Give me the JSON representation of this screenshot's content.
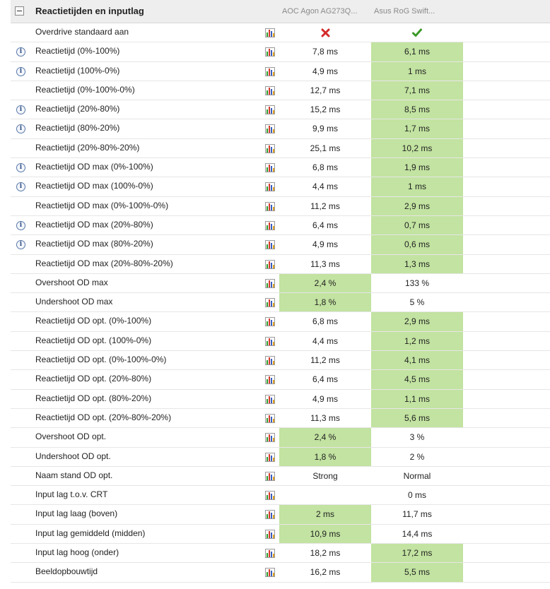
{
  "section": {
    "title": "Reactietijden en inputlag",
    "columns": [
      "AOC Agon AG273Q...",
      "Asus RoG Swift..."
    ]
  },
  "colors": {
    "best": "#c2e3a1",
    "cross": "#d42a2a",
    "check": "#3a9a28"
  },
  "rows": [
    {
      "label": "Overdrive standaard aan",
      "info": false,
      "a": "",
      "b": "",
      "a_icon": "cross-icon",
      "b_icon": "check-icon",
      "best": ""
    },
    {
      "label": "Reactietijd (0%-100%)",
      "info": true,
      "a": "7,8 ms",
      "b": "6,1 ms",
      "best": "b"
    },
    {
      "label": "Reactietijd (100%-0%)",
      "info": true,
      "a": "4,9 ms",
      "b": "1 ms",
      "best": "b"
    },
    {
      "label": "Reactietijd (0%-100%-0%)",
      "info": false,
      "a": "12,7 ms",
      "b": "7,1 ms",
      "best": "b"
    },
    {
      "label": "Reactietijd (20%-80%)",
      "info": true,
      "a": "15,2 ms",
      "b": "8,5 ms",
      "best": "b"
    },
    {
      "label": "Reactietijd (80%-20%)",
      "info": true,
      "a": "9,9 ms",
      "b": "1,7 ms",
      "best": "b"
    },
    {
      "label": "Reactietijd (20%-80%-20%)",
      "info": false,
      "a": "25,1 ms",
      "b": "10,2 ms",
      "best": "b"
    },
    {
      "label": "Reactietijd OD max (0%-100%)",
      "info": true,
      "a": "6,8 ms",
      "b": "1,9 ms",
      "best": "b"
    },
    {
      "label": "Reactietijd OD max (100%-0%)",
      "info": true,
      "a": "4,4 ms",
      "b": "1 ms",
      "best": "b"
    },
    {
      "label": "Reactietijd OD max (0%-100%-0%)",
      "info": false,
      "a": "11,2 ms",
      "b": "2,9 ms",
      "best": "b"
    },
    {
      "label": "Reactietijd OD max (20%-80%)",
      "info": true,
      "a": "6,4 ms",
      "b": "0,7 ms",
      "best": "b"
    },
    {
      "label": "Reactietijd OD max (80%-20%)",
      "info": true,
      "a": "4,9 ms",
      "b": "0,6 ms",
      "best": "b"
    },
    {
      "label": "Reactietijd OD max (20%-80%-20%)",
      "info": false,
      "a": "11,3 ms",
      "b": "1,3 ms",
      "best": "b"
    },
    {
      "label": "Overshoot OD max",
      "info": false,
      "a": "2,4 %",
      "b": "133 %",
      "best": "a"
    },
    {
      "label": "Undershoot OD max",
      "info": false,
      "a": "1,8 %",
      "b": "5 %",
      "best": "a"
    },
    {
      "label": "Reactietijd OD opt. (0%-100%)",
      "info": false,
      "a": "6,8 ms",
      "b": "2,9 ms",
      "best": "b"
    },
    {
      "label": "Reactietijd OD opt. (100%-0%)",
      "info": false,
      "a": "4,4 ms",
      "b": "1,2 ms",
      "best": "b"
    },
    {
      "label": "Reactietijd OD opt. (0%-100%-0%)",
      "info": false,
      "a": "11,2 ms",
      "b": "4,1 ms",
      "best": "b"
    },
    {
      "label": "Reactietijd OD opt. (20%-80%)",
      "info": false,
      "a": "6,4 ms",
      "b": "4,5 ms",
      "best": "b"
    },
    {
      "label": "Reactietijd OD opt. (80%-20%)",
      "info": false,
      "a": "4,9 ms",
      "b": "1,1 ms",
      "best": "b"
    },
    {
      "label": "Reactietijd OD opt. (20%-80%-20%)",
      "info": false,
      "a": "11,3 ms",
      "b": "5,6 ms",
      "best": "b"
    },
    {
      "label": "Overshoot OD opt.",
      "info": false,
      "a": "2,4 %",
      "b": "3 %",
      "best": "a"
    },
    {
      "label": "Undershoot OD opt.",
      "info": false,
      "a": "1,8 %",
      "b": "2 %",
      "best": "a"
    },
    {
      "label": "Naam stand OD opt.",
      "info": false,
      "a": "Strong",
      "b": "Normal",
      "best": ""
    },
    {
      "label": "Input lag t.o.v. CRT",
      "info": false,
      "a": "",
      "b": "0 ms",
      "best": ""
    },
    {
      "label": "Input lag laag (boven)",
      "info": false,
      "a": "2 ms",
      "b": "11,7 ms",
      "best": "a"
    },
    {
      "label": "Input lag gemiddeld (midden)",
      "info": false,
      "a": "10,9 ms",
      "b": "14,4 ms",
      "best": "a"
    },
    {
      "label": "Input lag hoog (onder)",
      "info": false,
      "a": "18,2 ms",
      "b": "17,2 ms",
      "best": "b"
    },
    {
      "label": "Beeldopbouwtijd",
      "info": false,
      "a": "16,2 ms",
      "b": "5,5 ms",
      "best": "b"
    }
  ]
}
